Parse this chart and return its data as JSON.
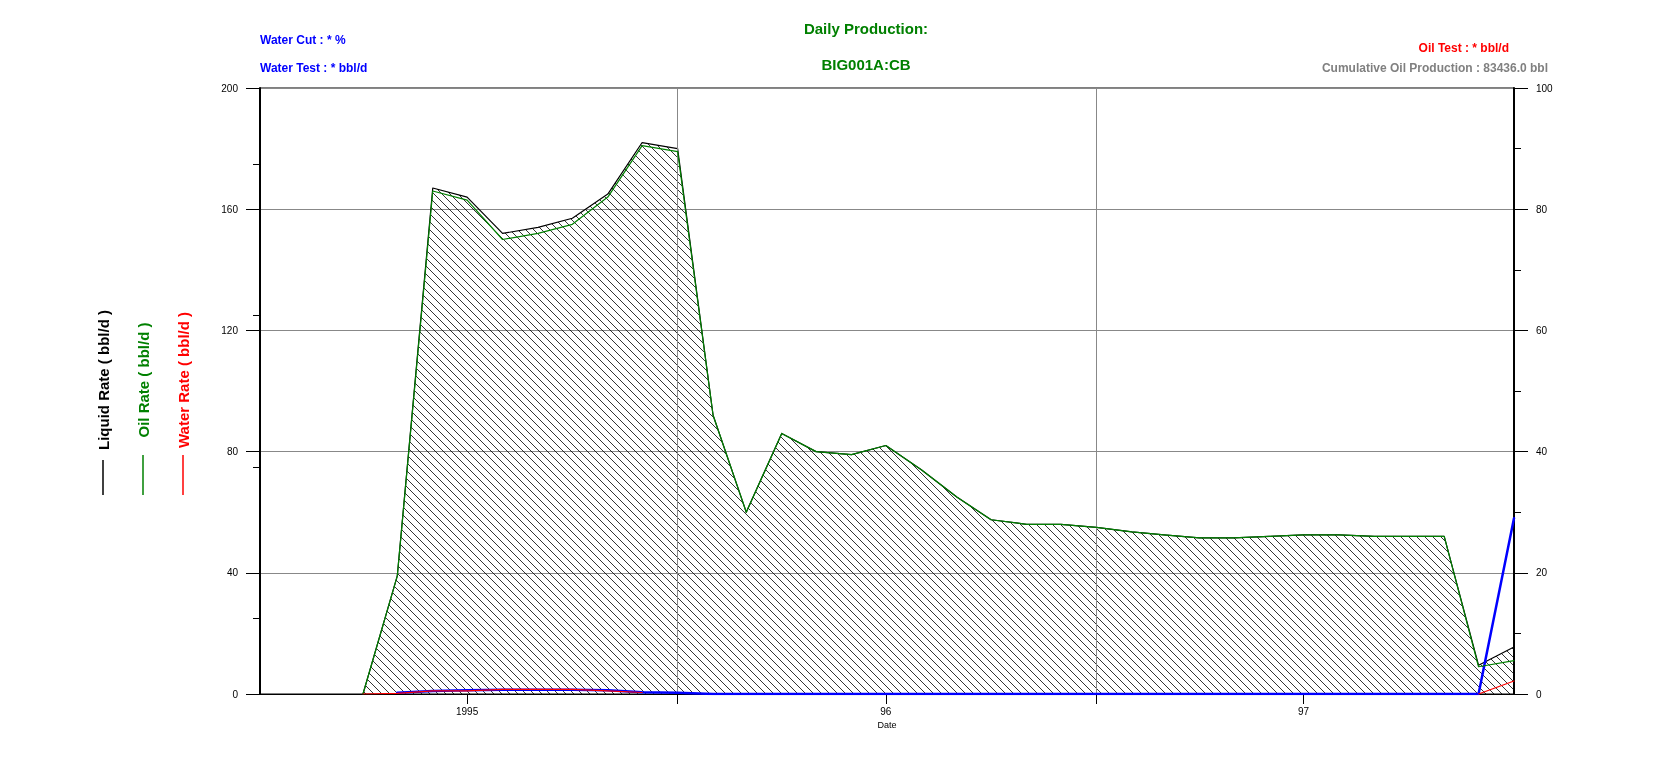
{
  "chart_data": {
    "type": "line",
    "title": "Daily Production:",
    "subtitle": "BIG001A:CB",
    "xlabel": "Date",
    "annotations": [
      "Water Cut : * %",
      "Water Test : * bbl/d",
      "Oil Test : * bbl/d",
      "Cumulative Oil Production : 83436.0 bbl"
    ],
    "x": [
      "1995-04-01",
      "1995-05-01",
      "1995-06-01",
      "1995-07-01",
      "1995-08-01",
      "1995-09-01",
      "1995-10-01",
      "1995-11-01",
      "1995-12-01",
      "1996-01-01",
      "1996-02-01",
      "1996-03-01",
      "1996-04-01",
      "1996-05-01",
      "1996-06-01",
      "1996-07-01",
      "1996-08-01",
      "1996-09-01",
      "1996-10-01",
      "1996-11-01",
      "1996-12-01",
      "1997-01-01",
      "1997-02-01",
      "1997-03-01",
      "1997-04-01",
      "1997-05-01",
      "1997-06-01",
      "1997-07-01",
      "1997-08-01",
      "1997-09-01",
      "1997-10-01",
      "1997-11-01",
      "1997-12-01",
      "1998-01-01"
    ],
    "series": [
      {
        "name": "Liquid Rate ( bbl/d )",
        "type": "area",
        "color": "#000000",
        "values": [
          0,
          39,
          167,
          164,
          152,
          154,
          157,
          165,
          182,
          180,
          92,
          60,
          86,
          80,
          79,
          82,
          74,
          65,
          57.5,
          56,
          56,
          55,
          53.5,
          52.5,
          51.5,
          51.5,
          52,
          52.5,
          52.5,
          52,
          52,
          52,
          9.5,
          15.5
        ]
      },
      {
        "name": "Oil Rate ( bbl/d )",
        "color": "#008000",
        "values": [
          0,
          39,
          166,
          163,
          150,
          152,
          155,
          164,
          181,
          179,
          92,
          60,
          86,
          80,
          79,
          82,
          74,
          65,
          57.5,
          56,
          56,
          55,
          53.5,
          52.5,
          51.5,
          51.5,
          52,
          52.5,
          52.5,
          52,
          52,
          52,
          9,
          11
        ]
      },
      {
        "name": "Water Rate ( bbl/d )",
        "color": "#ff0000",
        "values": [
          0,
          0.2,
          1,
          1,
          1.5,
          1.5,
          1.5,
          1,
          0.5,
          null,
          null,
          null,
          null,
          null,
          null,
          null,
          null,
          null,
          null,
          null,
          null,
          null,
          null,
          null,
          null,
          null,
          null,
          null,
          null,
          null,
          null,
          null,
          0,
          4.3
        ]
      },
      {
        "axis": "y2",
        "color": "#0000ff",
        "x": [
          "1995-05-01",
          "1995-06-01",
          "1995-07-01",
          "1995-08-01",
          "1995-09-01",
          "1995-10-01",
          "1995-11-01",
          "1995-12-01",
          "1996-01-01",
          "1996-02-01",
          "1996-07-01",
          "1997-01-01",
          "1997-07-01",
          "1997-12-01",
          "1998-01-01"
        ],
        "values": [
          0.2,
          0.5,
          0.6,
          0.7,
          0.7,
          0.7,
          0.6,
          0.3,
          0.2,
          0,
          0,
          0,
          0,
          0,
          29
        ]
      }
    ],
    "xlim": [
      "1995-01-01",
      "1998-01-01"
    ],
    "xticks": [
      {
        "value": "1995-07-01",
        "label": "1995"
      },
      {
        "value": "1996-01-01",
        "label": null
      },
      {
        "value": "1996-07-01",
        "label": "96"
      },
      {
        "value": "1997-01-01",
        "label": null
      },
      {
        "value": "1997-07-01",
        "label": "97"
      }
    ],
    "ylim": [
      0,
      200
    ],
    "yticks": [
      0,
      40,
      80,
      120,
      160,
      200
    ],
    "y2lim": [
      0,
      100
    ],
    "y2ticks": [
      0,
      20,
      40,
      60,
      80,
      100
    ],
    "grid": true,
    "legend": "left",
    "marker": "none",
    "line_style": "solid"
  }
}
